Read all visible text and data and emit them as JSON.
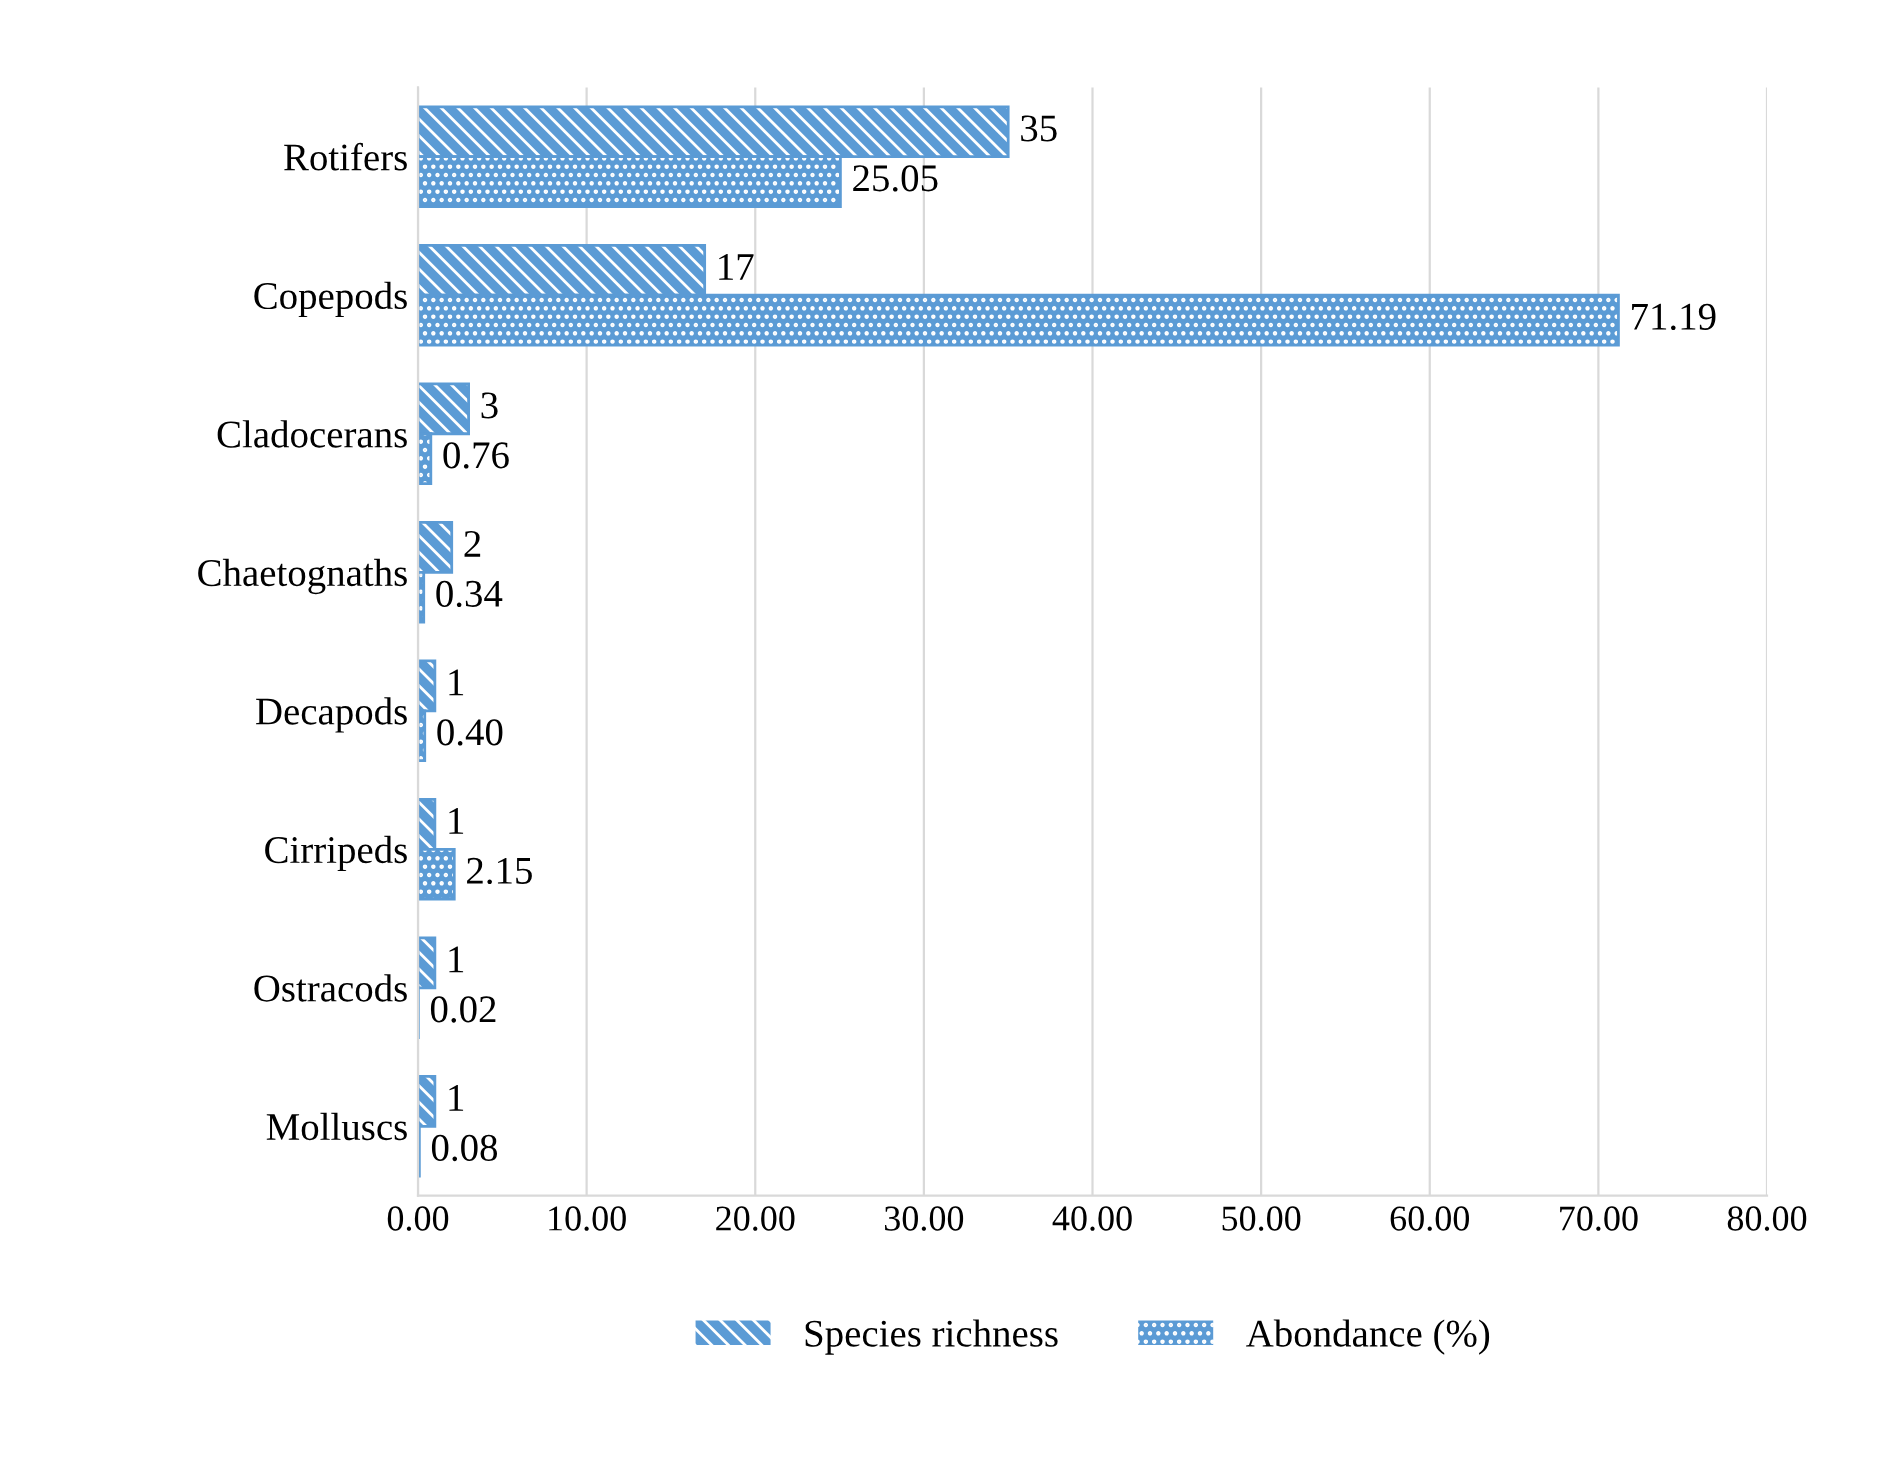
{
  "chart_data": {
    "type": "bar",
    "orientation": "horizontal",
    "categories": [
      "Rotifers",
      "Copepods",
      "Cladocerans",
      "Chaetognaths",
      "Decapods",
      "Cirripeds",
      "Ostracods",
      "Molluscs"
    ],
    "series": [
      {
        "name": "Species richness",
        "color": "#5b9bd5",
        "values": [
          35,
          17,
          3,
          2,
          1,
          1,
          1,
          1
        ],
        "value_labels": [
          "35",
          "17",
          "3",
          "2",
          "1",
          "1",
          "1",
          "1"
        ]
      },
      {
        "name": "Abondance (%)",
        "color": "#5b9bd5",
        "values": [
          25.05,
          71.19,
          0.76,
          0.34,
          0.4,
          2.15,
          0.02,
          0.08
        ],
        "value_labels": [
          "25.05",
          "71.19",
          "0.76",
          "0.34",
          "0.40",
          "2.15",
          "0.02",
          "0.08"
        ]
      }
    ],
    "xlim": [
      0,
      80
    ],
    "xticks": [
      {
        "value": 0,
        "label": "0.00"
      },
      {
        "value": 10,
        "label": "10.00"
      },
      {
        "value": 20,
        "label": "20.00"
      },
      {
        "value": 30,
        "label": "30.00"
      },
      {
        "value": 40,
        "label": "40.00"
      },
      {
        "value": 50,
        "label": "50.00"
      },
      {
        "value": 60,
        "label": "60.00"
      },
      {
        "value": 70,
        "label": "70.00"
      },
      {
        "value": 80,
        "label": "80.00"
      }
    ],
    "grid": "x",
    "legend": "bottom"
  }
}
